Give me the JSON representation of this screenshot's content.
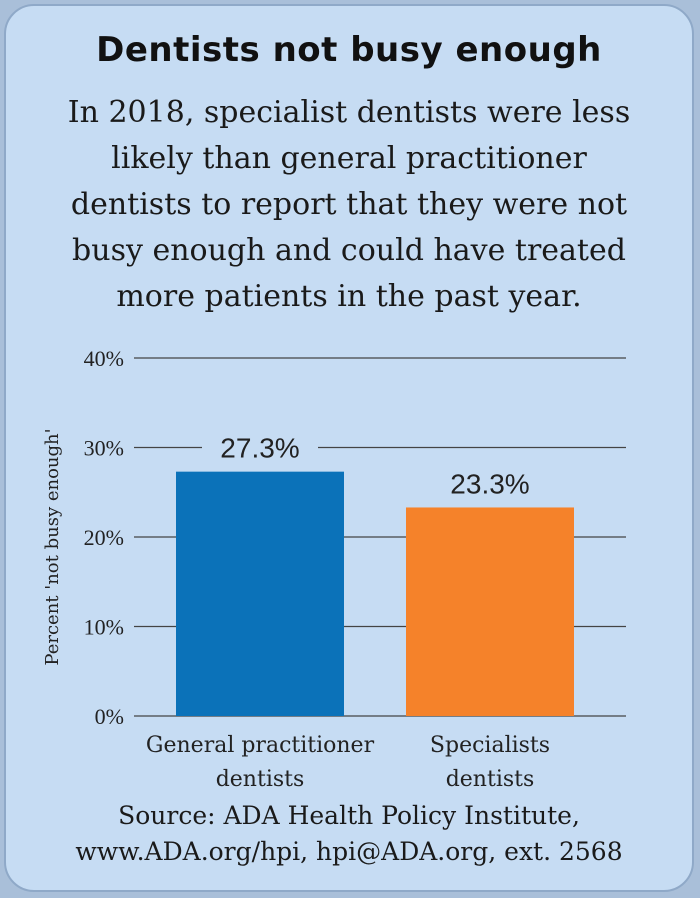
{
  "chart_data": {
    "type": "bar",
    "title": "Dentists not busy enough",
    "subtitle_lines": [
      "In 2018, specialist dentists were less",
      "likely than general practitioner",
      "dentists to report that they were not",
      "busy enough and could have treated",
      "more patients in the past year."
    ],
    "ylabel": "Percent 'not busy enough'",
    "xlabel": "",
    "ylim": [
      0,
      40
    ],
    "yticks": [
      0,
      10,
      20,
      30,
      40
    ],
    "ytick_labels": [
      "0%",
      "10%",
      "20%",
      "30%",
      "40%"
    ],
    "grid": true,
    "categories": [
      [
        "General practitioner",
        "dentists"
      ],
      [
        "Specialists",
        "dentists"
      ]
    ],
    "values": [
      27.3,
      23.3
    ],
    "value_labels": [
      "27.3%",
      "23.3%"
    ],
    "colors": [
      "#0b72b9",
      "#f5822a"
    ],
    "source_lines": [
      "Source: ADA Health Policy Institute,",
      "www.ADA.org/hpi, hpi@ADA.org, ext. 2568"
    ]
  }
}
